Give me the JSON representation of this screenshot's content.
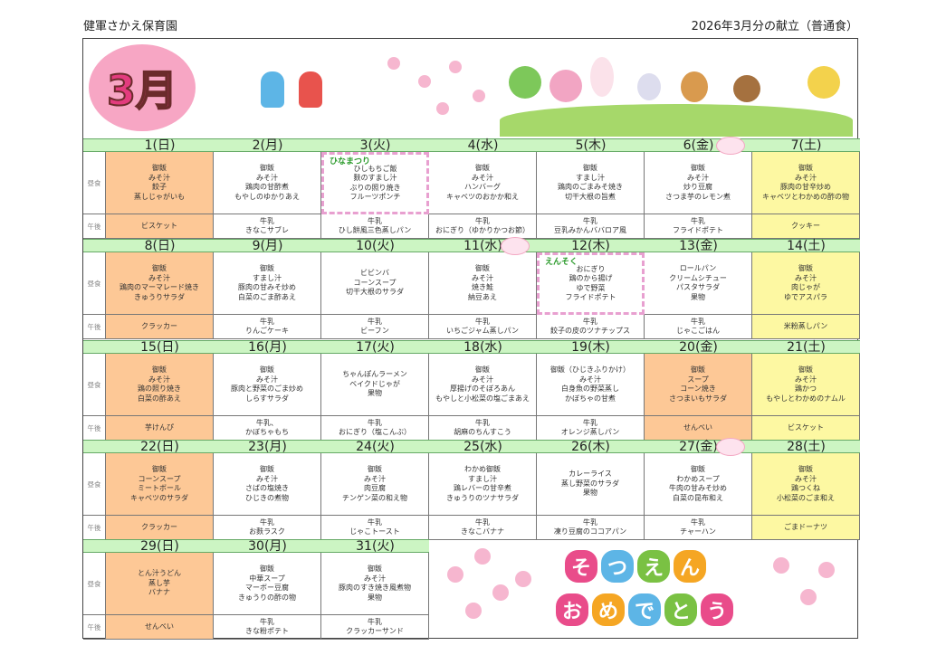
{
  "header": {
    "school": "健軍さかえ保育園",
    "title": "2026年3月分の献立（普通食）"
  },
  "banner": {
    "month": "3月"
  },
  "row_labels": {
    "lunch": "昼食",
    "snack": "午後"
  },
  "colors": {
    "day_header": "#ccf5c3",
    "sunday_holiday": "#fdc896",
    "saturday": "#fdf8a2"
  },
  "weeks": [
    {
      "days": [
        {
          "date": "1(日)",
          "type": "sun",
          "lunch": [
            "御飯",
            "みそ汁",
            "餃子",
            "蒸しじゃがいも"
          ],
          "snack": [
            "ビスケット"
          ]
        },
        {
          "date": "2(月)",
          "lunch": [
            "御飯",
            "みそ汁",
            "鶏肉の甘酢煮",
            "もやしのゆかりあえ"
          ],
          "snack": [
            "牛乳",
            "きなこサブレ"
          ]
        },
        {
          "date": "3(火)",
          "event": "ひなまつり",
          "lunch": [
            "ひしもちご飯",
            "麩のすまし汁",
            "ぶりの照り焼き",
            "フルーツポンチ"
          ],
          "snack": [
            "牛乳",
            "ひし餅風三色蒸しパン"
          ]
        },
        {
          "date": "4(水)",
          "lunch": [
            "御飯",
            "みそ汁",
            "ハンバーグ",
            "キャベツのおかか和え"
          ],
          "snack": [
            "牛乳",
            "おにぎり（ゆかりかつお節）"
          ]
        },
        {
          "date": "5(木)",
          "lunch": [
            "御飯",
            "すまし汁",
            "鶏肉のごまみそ焼き",
            "切干大根の旨煮"
          ],
          "snack": [
            "牛乳",
            "豆乳みかんババロア風"
          ]
        },
        {
          "date": "6(金)",
          "birthday": true,
          "lunch": [
            "御飯",
            "みそ汁",
            "炒り豆腐",
            "さつま芋のレモン煮"
          ],
          "snack": [
            "牛乳",
            "フライドポテト"
          ]
        },
        {
          "date": "7(土)",
          "type": "sat",
          "lunch": [
            "御飯",
            "みそ汁",
            "豚肉の甘辛炒め",
            "キャベツとわかめの酢の物"
          ],
          "snack": [
            "クッキー"
          ]
        }
      ]
    },
    {
      "days": [
        {
          "date": "8(日)",
          "type": "sun",
          "lunch": [
            "御飯",
            "みそ汁",
            "鶏肉のマーマレード焼き",
            "きゅうりサラダ"
          ],
          "snack": [
            "クラッカー"
          ]
        },
        {
          "date": "9(月)",
          "lunch": [
            "御飯",
            "すまし汁",
            "豚肉の甘みそ炒め",
            "白菜のごま酢あえ"
          ],
          "snack": [
            "牛乳",
            "りんごケーキ"
          ]
        },
        {
          "date": "10(火)",
          "lunch": [
            "ビビンバ",
            "コーンスープ",
            "切干大根のサラダ"
          ],
          "snack": [
            "牛乳",
            "ビーフン"
          ]
        },
        {
          "date": "11(水)",
          "birthday": true,
          "lunch": [
            "御飯",
            "みそ汁",
            "焼き鮭",
            "納豆あえ"
          ],
          "snack": [
            "牛乳",
            "いちごジャム蒸しパン"
          ]
        },
        {
          "date": "12(木)",
          "event": "えんそく",
          "lunch": [
            "おにぎり",
            "鶏のから揚げ",
            "ゆで野菜",
            "フライドポテト"
          ],
          "snack": [
            "牛乳",
            "餃子の皮のツナチップス"
          ]
        },
        {
          "date": "13(金)",
          "lunch": [
            "ロールパン",
            "クリームシチュー",
            "パスタサラダ",
            "果物"
          ],
          "snack": [
            "牛乳",
            "じゃこごはん"
          ]
        },
        {
          "date": "14(土)",
          "type": "sat",
          "lunch": [
            "御飯",
            "みそ汁",
            "肉じゃが",
            "ゆでアスパラ"
          ],
          "snack": [
            "米粉蒸しパン"
          ]
        }
      ]
    },
    {
      "days": [
        {
          "date": "15(日)",
          "type": "sun",
          "lunch": [
            "御飯",
            "みそ汁",
            "鶏の照り焼き",
            "白菜の酢あえ"
          ],
          "snack": [
            "芋けんぴ"
          ]
        },
        {
          "date": "16(月)",
          "lunch": [
            "御飯",
            "みそ汁",
            "豚肉と野菜のごま炒め",
            "しらすサラダ"
          ],
          "snack": [
            "牛乳、",
            "かぼちゃもち"
          ]
        },
        {
          "date": "17(火)",
          "lunch": [
            "ちゃんぽんラーメン",
            "ベイクドじゃが",
            "果物"
          ],
          "snack": [
            "牛乳",
            "おにぎり（塩こんぶ）"
          ]
        },
        {
          "date": "18(水)",
          "lunch": [
            "御飯",
            "みそ汁",
            "厚揚げのそぼろあん",
            "もやしと小松菜の塩ごまあえ"
          ],
          "snack": [
            "牛乳",
            "胡麻のちんすこう"
          ]
        },
        {
          "date": "19(木)",
          "lunch": [
            "御飯（ひじきふりかけ）",
            "みそ汁",
            "白身魚の野菜蒸し",
            "かぼちゃの甘煮"
          ],
          "snack": [
            "牛乳",
            "オレンジ蒸しパン"
          ]
        },
        {
          "date": "20(金)",
          "type": "sun",
          "lunch": [
            "御飯",
            "スープ",
            "コーン焼き",
            "さつまいもサラダ"
          ],
          "snack": [
            "せんべい"
          ]
        },
        {
          "date": "21(土)",
          "type": "sat",
          "lunch": [
            "御飯",
            "みそ汁",
            "鶏かつ",
            "もやしとわかめのナムル"
          ],
          "snack": [
            "ビスケット"
          ]
        }
      ]
    },
    {
      "days": [
        {
          "date": "22(日)",
          "type": "sun",
          "lunch": [
            "御飯",
            "コーンスープ",
            "ミートボール",
            "キャベツのサラダ"
          ],
          "snack": [
            "クラッカー"
          ]
        },
        {
          "date": "23(月)",
          "lunch": [
            "御飯",
            "みそ汁",
            "さばの塩焼き",
            "ひじきの煮物"
          ],
          "snack": [
            "牛乳",
            "お麩ラスク"
          ]
        },
        {
          "date": "24(火)",
          "lunch": [
            "御飯",
            "みそ汁",
            "肉豆腐",
            "チンゲン菜の和え物"
          ],
          "snack": [
            "牛乳",
            "じゃこトースト"
          ]
        },
        {
          "date": "25(水)",
          "lunch": [
            "わかめ御飯",
            "すまし汁",
            "鶏レバーの甘辛煮",
            "きゅうりのツナサラダ"
          ],
          "snack": [
            "牛乳",
            "きなこバナナ"
          ]
        },
        {
          "date": "26(木)",
          "lunch": [
            "カレーライス",
            "蒸し野菜のサラダ",
            "果物"
          ],
          "snack": [
            "牛乳",
            "凍り豆腐のココアパン"
          ]
        },
        {
          "date": "27(金)",
          "birthday": true,
          "lunch": [
            "御飯",
            "わかめスープ",
            "牛肉の甘みそ炒め",
            "白菜の昆布和え"
          ],
          "snack": [
            "牛乳",
            "チャーハン"
          ]
        },
        {
          "date": "28(土)",
          "type": "sat",
          "lunch": [
            "御飯",
            "みそ汁",
            "鶏つくね",
            "小松菜のごま和え"
          ],
          "snack": [
            "ごまドーナツ"
          ]
        }
      ]
    },
    {
      "days": [
        {
          "date": "29(日)",
          "type": "sun",
          "lunch": [
            "とん汁うどん",
            "蒸し芋",
            "バナナ"
          ],
          "snack": [
            "せんべい"
          ]
        },
        {
          "date": "30(月)",
          "lunch": [
            "御飯",
            "中華スープ",
            "マーボー豆腐",
            "きゅうりの酢の物"
          ],
          "snack": [
            "牛乳",
            "きな粉ポテト"
          ]
        },
        {
          "date": "31(火)",
          "lunch": [
            "御飯",
            "みそ汁",
            "豚肉のすき焼き風煮物",
            "果物"
          ],
          "snack": [
            "牛乳",
            "クラッカーサンド"
          ]
        }
      ]
    }
  ],
  "celebration": {
    "line1": [
      "そ",
      "つ",
      "え",
      "ん"
    ],
    "line2": [
      "お",
      "め",
      "で",
      "と",
      "う"
    ]
  }
}
